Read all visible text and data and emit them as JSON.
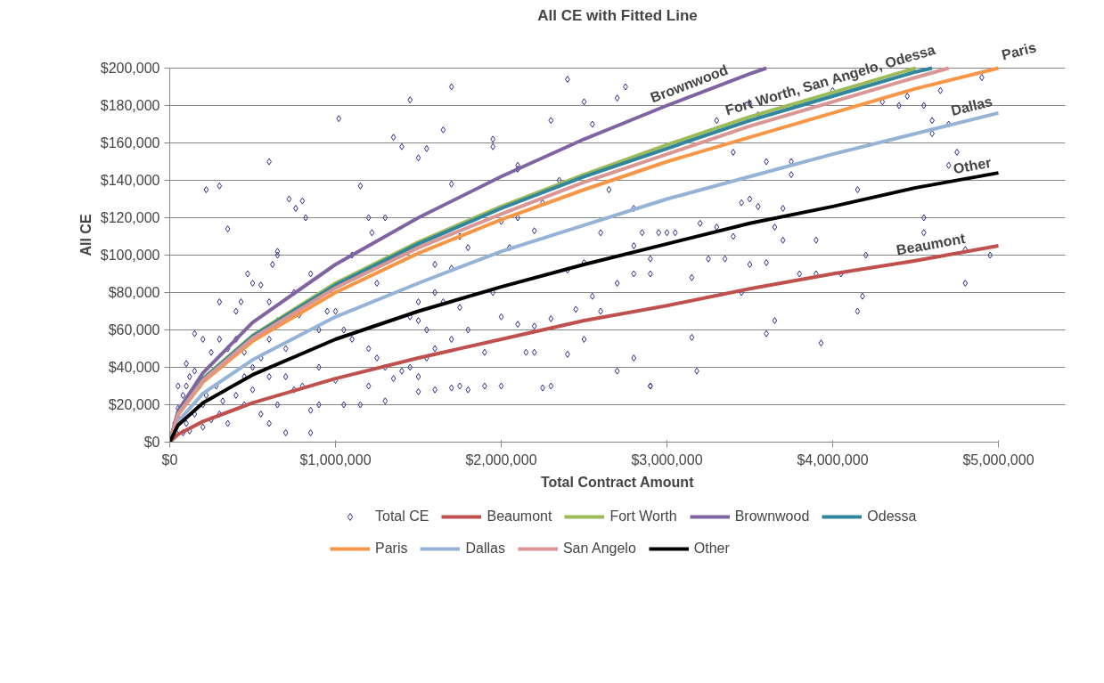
{
  "chart_data": {
    "type": "line",
    "title": "All CE with Fitted Line",
    "xlabel": "Total Contract Amount",
    "ylabel": "All CE",
    "xlim": [
      0,
      5000000
    ],
    "ylim": [
      0,
      200000
    ],
    "xticks": [
      {
        "value": 0,
        "label": "$0"
      },
      {
        "value": 1000000,
        "label": "$1,000,000"
      },
      {
        "value": 2000000,
        "label": "$2,000,000"
      },
      {
        "value": 3000000,
        "label": "$3,000,000"
      },
      {
        "value": 4000000,
        "label": "$4,000,000"
      },
      {
        "value": 5000000,
        "label": "$5,000,000"
      }
    ],
    "yticks": [
      {
        "value": 0,
        "label": "$0"
      },
      {
        "value": 20000,
        "label": "$20,000"
      },
      {
        "value": 40000,
        "label": "$40,000"
      },
      {
        "value": 60000,
        "label": "$60,000"
      },
      {
        "value": 80000,
        "label": "$80,000"
      },
      {
        "value": 100000,
        "label": "$100,000"
      },
      {
        "value": 120000,
        "label": "$120,000"
      },
      {
        "value": 140000,
        "label": "$140,000"
      },
      {
        "value": 160000,
        "label": "$160,000"
      },
      {
        "value": 180000,
        "label": "$180,000"
      },
      {
        "value": 200000,
        "label": "$200,000"
      }
    ],
    "grid": "y",
    "legend": "bottom",
    "marker": "diamond",
    "line_style": "solid",
    "series": [
      {
        "name": "Total CE",
        "type": "scatter",
        "color": "#2e2e8a",
        "x": [
          3300000,
          3550000,
          3600000,
          3400000,
          3500000,
          3450000,
          3550000,
          3600000,
          3500000,
          3300000,
          3200000,
          3400000,
          3250000,
          3350000,
          3450000,
          3150000,
          3150000,
          3180000,
          3050000,
          3000000,
          2950000,
          2900000,
          3750000,
          3700000,
          3650000,
          3700000,
          3650000,
          3600000,
          3800000,
          3900000,
          3900000,
          3930000,
          4050000,
          4150000,
          4200000,
          4180000,
          4150000,
          4450000,
          4550000,
          4600000,
          4600000,
          4550000,
          4550000,
          4400000,
          4750000,
          4700000,
          4700000,
          4800000,
          4800000,
          4950000,
          4900000,
          4650000,
          4000000,
          3500000,
          4300000,
          3750000,
          2100000,
          2100000,
          2300000,
          2400000,
          2500000,
          2700000,
          2750000,
          2550000,
          2350000,
          2250000,
          2100000,
          2400000,
          2200000,
          2000000,
          2050000,
          2600000,
          2650000,
          2800000,
          2850000,
          2800000,
          2900000,
          2500000,
          2550000,
          2450000,
          2600000,
          2700000,
          2900000,
          2800000,
          2300000,
          2200000,
          2100000,
          2000000,
          2200000,
          2150000,
          2000000,
          1900000,
          1800000,
          2300000,
          2250000,
          2400000,
          2500000,
          2700000,
          2800000,
          2900000,
          1700000,
          1650000,
          1700000,
          1550000,
          1450000,
          1500000,
          1950000,
          1950000,
          1750000,
          1800000,
          1600000,
          1700000,
          1600000,
          1650000,
          1500000,
          1750000,
          1800000,
          1700000,
          1600000,
          1550000,
          1900000,
          1950000,
          1500000,
          1550000,
          1450000,
          1450000,
          1500000,
          1500000,
          1600000,
          1700000,
          1750000,
          300000,
          220000,
          350000,
          600000,
          1020000,
          1350000,
          1400000,
          1150000,
          720000,
          760000,
          800000,
          820000,
          1200000,
          1220000,
          650000,
          650000,
          620000,
          850000,
          1100000,
          1300000,
          1250000,
          470000,
          500000,
          550000,
          430000,
          300000,
          400000,
          600000,
          650000,
          750000,
          780000,
          900000,
          950000,
          1000000,
          1050000,
          1100000,
          1200000,
          1250000,
          1300000,
          1350000,
          1400000,
          1200000,
          1150000,
          1300000,
          1050000,
          1000000,
          850000,
          700000,
          900000,
          850000,
          800000,
          900000,
          700000,
          600000,
          550000,
          500000,
          450000,
          400000,
          350000,
          300000,
          250000,
          200000,
          150000,
          100000,
          120000,
          180000,
          220000,
          280000,
          320000,
          400000,
          450000,
          500000,
          550000,
          600000,
          650000,
          350000,
          300000,
          250000,
          200000,
          150000,
          100000,
          80000,
          50000,
          60000,
          40000,
          80000,
          120000,
          200000,
          30000,
          100000,
          150000,
          50000,
          450000,
          700000,
          750000,
          600000
        ],
        "values": [
          172000,
          175000,
          150000,
          155000,
          130000,
          128000,
          126000,
          96000,
          95000,
          115000,
          117000,
          110000,
          98000,
          98000,
          80000,
          88000,
          56000,
          38000,
          112000,
          112000,
          112000,
          30000,
          150000,
          125000,
          115000,
          108000,
          65000,
          58000,
          90000,
          108000,
          90000,
          53000,
          90000,
          135000,
          100000,
          78000,
          70000,
          185000,
          180000,
          165000,
          172000,
          120000,
          112000,
          180000,
          155000,
          148000,
          170000,
          85000,
          103000,
          100000,
          195000,
          188000,
          188000,
          181000,
          182000,
          143000,
          148000,
          146000,
          172000,
          194000,
          182000,
          184000,
          190000,
          170000,
          140000,
          128000,
          120000,
          92000,
          113000,
          118000,
          104000,
          112000,
          135000,
          125000,
          112000,
          105000,
          98000,
          96000,
          78000,
          71000,
          70000,
          85000,
          90000,
          90000,
          66000,
          62000,
          63000,
          67000,
          48000,
          48000,
          30000,
          30000,
          28000,
          30000,
          29000,
          47000,
          55000,
          38000,
          45000,
          30000,
          190000,
          167000,
          138000,
          157000,
          183000,
          152000,
          158000,
          162000,
          110000,
          104000,
          95000,
          93000,
          80000,
          75000,
          75000,
          72000,
          60000,
          55000,
          50000,
          45000,
          48000,
          80000,
          65000,
          60000,
          67000,
          40000,
          35000,
          27000,
          28000,
          29000,
          30000,
          137000,
          135000,
          114000,
          150000,
          173000,
          163000,
          158000,
          137000,
          130000,
          125000,
          129000,
          120000,
          120000,
          112000,
          100000,
          102000,
          95000,
          90000,
          100000,
          120000,
          85000,
          90000,
          85000,
          84000,
          75000,
          75000,
          70000,
          75000,
          65000,
          80000,
          68000,
          60000,
          70000,
          70000,
          60000,
          55000,
          50000,
          45000,
          40000,
          34000,
          38000,
          30000,
          20000,
          22000,
          20000,
          33000,
          5000,
          5000,
          20000,
          17000,
          30000,
          40000,
          50000,
          55000,
          45000,
          40000,
          48000,
          55000,
          50000,
          55000,
          48000,
          55000,
          58000,
          42000,
          35000,
          30000,
          25000,
          30000,
          22000,
          25000,
          20000,
          28000,
          15000,
          10000,
          20000,
          10000,
          15000,
          12000,
          20000,
          15000,
          10000,
          25000,
          18000,
          12000,
          5000,
          5000,
          6000,
          8000,
          10000,
          30000,
          38000,
          30000,
          35000,
          35000,
          28000,
          35000
        ]
      },
      {
        "name": "Beaumont",
        "color": "#c0504d",
        "marker": "none",
        "x": [
          0,
          50000,
          200000,
          500000,
          1000000,
          1500000,
          2000000,
          2500000,
          3000000,
          3500000,
          4000000,
          4500000,
          5000000
        ],
        "values": [
          0,
          4200,
          11000,
          21000,
          34000,
          45000,
          55000,
          65000,
          73000,
          82000,
          90000,
          97000,
          105000
        ]
      },
      {
        "name": "Fort Worth",
        "color": "#9bbb59",
        "marker": "none",
        "x": [
          0,
          50000,
          200000,
          500000,
          1000000,
          1500000,
          2000000,
          2500000,
          3000000,
          3500000,
          4000000,
          4500000
        ],
        "values": [
          0,
          15400,
          34000,
          57000,
          85000,
          107000,
          126000,
          143000,
          159000,
          174000,
          187000,
          200000
        ]
      },
      {
        "name": "Brownwood",
        "color": "#8064a2",
        "marker": "none",
        "x": [
          0,
          50000,
          200000,
          500000,
          1000000,
          1500000,
          2000000,
          2500000,
          3000000,
          3500000,
          3600000
        ],
        "values": [
          0,
          16700,
          37000,
          64000,
          95000,
          120000,
          142000,
          162000,
          180000,
          197000,
          200000
        ]
      },
      {
        "name": "Odessa",
        "color": "#31859c",
        "marker": "none",
        "x": [
          0,
          50000,
          200000,
          500000,
          1000000,
          1500000,
          2000000,
          2500000,
          3000000,
          3500000,
          4000000,
          4500000,
          4600000
        ],
        "values": [
          0,
          15200,
          33600,
          56600,
          84000,
          106000,
          125000,
          142000,
          157000,
          172000,
          185000,
          198000,
          200000
        ]
      },
      {
        "name": "Paris",
        "color": "#f79646",
        "marker": "none",
        "x": [
          0,
          50000,
          200000,
          500000,
          1000000,
          1500000,
          2000000,
          2500000,
          3000000,
          3500000,
          4000000,
          4500000,
          5000000
        ],
        "values": [
          0,
          14500,
          32000,
          54000,
          80000,
          101000,
          119000,
          135000,
          150000,
          163000,
          176000,
          189000,
          200000
        ]
      },
      {
        "name": "Dallas",
        "color": "#95b3d7",
        "marker": "none",
        "x": [
          0,
          50000,
          200000,
          500000,
          1000000,
          1500000,
          2000000,
          2500000,
          3000000,
          3500000,
          4000000,
          4500000,
          5000000
        ],
        "values": [
          0,
          11000,
          26000,
          44000,
          67000,
          85000,
          102000,
          116000,
          130000,
          142000,
          154000,
          165000,
          176000
        ]
      },
      {
        "name": "San Angelo",
        "color": "#d99694",
        "marker": "none",
        "x": [
          0,
          50000,
          200000,
          500000,
          1000000,
          1500000,
          2000000,
          2500000,
          3000000,
          3500000,
          4000000,
          4500000,
          4700000
        ],
        "values": [
          0,
          14900,
          33000,
          55600,
          82500,
          104000,
          122000,
          139000,
          154000,
          169000,
          182000,
          195000,
          200000
        ]
      },
      {
        "name": "Other",
        "color": "#000000",
        "marker": "none",
        "x": [
          0,
          50000,
          200000,
          500000,
          1000000,
          1500000,
          2000000,
          2500000,
          3000000,
          3500000,
          4000000,
          4500000,
          5000000
        ],
        "values": [
          0,
          9100,
          21000,
          36000,
          55000,
          70000,
          83000,
          95000,
          106000,
          117000,
          126000,
          136000,
          144000
        ]
      }
    ],
    "annotations": [
      {
        "text": "Brownwood",
        "x": 3150000,
        "y": 185000
      },
      {
        "text": "Fort Worth, San Angelo, Odessa",
        "x": 4000000,
        "y": 187000
      },
      {
        "text": "Paris",
        "x": 5000000,
        "y": 200000
      },
      {
        "text": "Dallas",
        "x": 4850000,
        "y": 173000
      },
      {
        "text": "Other",
        "x": 4850000,
        "y": 141000
      },
      {
        "text": "Beaumont",
        "x": 4600000,
        "y": 99000
      }
    ]
  }
}
